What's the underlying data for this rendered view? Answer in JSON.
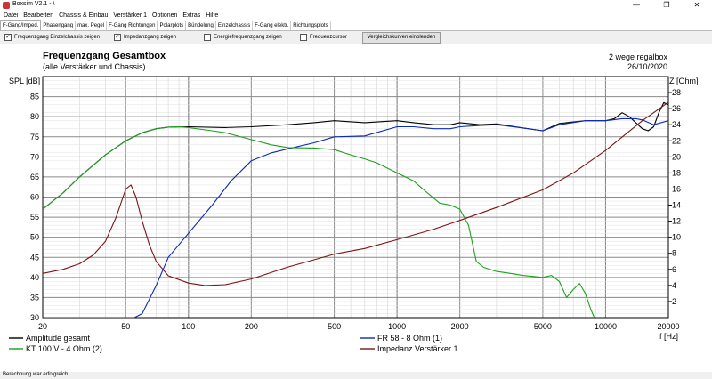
{
  "window": {
    "title": "Boxsim V2.1 - \\",
    "min": "—",
    "max": "❐",
    "close": "✕"
  },
  "menu": [
    "Datei",
    "Bearbeiten",
    "Chassis & Einbau",
    "Verstärker 1",
    "Optionen",
    "Extras",
    "Hilfe"
  ],
  "tabs": [
    "F-Gang/Imped.",
    "Phasengang",
    "max. Pegel",
    "F-Gang Richtungen",
    "Polarplots",
    "Bündelung",
    "Einzelchassis",
    "F-Gang elektr.",
    "Richtungsplots"
  ],
  "active_tab": 0,
  "toolbar": {
    "checkboxes": [
      {
        "label": "Frequenzgang Einzelchassis zeigen",
        "checked": true
      },
      {
        "label": "Impedanzgang zeigen",
        "checked": true
      },
      {
        "label": "Energiefrequenzgang zeigen",
        "checked": false
      },
      {
        "label": "Frequenzcursor",
        "checked": false
      }
    ],
    "compare_button": "Vergleichskurven einblenden"
  },
  "status": "Berechnung war erfolgreich",
  "chart_data": {
    "type": "line",
    "title": "Frequenzgang Gesamtbox",
    "subtitle": "(alle Verstärker und Chassis)",
    "info_right": [
      "2 wege regalbox",
      "26/10/2020"
    ],
    "ylabel": "SPL [dB]",
    "y2label": "Z [Ohm]",
    "xlabel": "f [Hz]",
    "xlim": [
      20,
      20000
    ],
    "ylim": [
      30,
      90
    ],
    "y2lim": [
      0,
      30
    ],
    "xscale": "log",
    "x_ticks": [
      20,
      50,
      100,
      200,
      500,
      1000,
      2000,
      5000,
      10000,
      20000
    ],
    "x_tick_labels": [
      "20",
      "50",
      "100",
      "200",
      "500",
      "1000",
      "2000",
      "5000",
      "10000",
      "20000"
    ],
    "y_ticks": [
      30,
      35,
      40,
      45,
      50,
      55,
      60,
      65,
      70,
      75,
      80,
      85
    ],
    "y_tick_labels": [
      "30",
      "35",
      "40",
      "45",
      "50",
      "55",
      "60",
      "65",
      "70",
      "75",
      "80",
      "85"
    ],
    "y2_ticks": [
      2,
      4,
      6,
      8,
      10,
      12,
      14,
      16,
      18,
      20,
      22,
      24,
      26,
      28
    ],
    "y2_tick_labels": [
      "2",
      "4",
      "6",
      "8",
      "10",
      "12",
      "14",
      "16",
      "18",
      "20",
      "22",
      "24",
      "26",
      "28"
    ],
    "grid": true,
    "series": [
      {
        "name": "Amplitude gesamt",
        "color": "#000000",
        "axis": "left",
        "points": [
          [
            20,
            57
          ],
          [
            25,
            61
          ],
          [
            30,
            65
          ],
          [
            40,
            70.5
          ],
          [
            50,
            74
          ],
          [
            60,
            76
          ],
          [
            70,
            77
          ],
          [
            80,
            77.4
          ],
          [
            100,
            77.5
          ],
          [
            150,
            77.3
          ],
          [
            200,
            77.5
          ],
          [
            300,
            78
          ],
          [
            400,
            78.5
          ],
          [
            500,
            79
          ],
          [
            700,
            78.5
          ],
          [
            1000,
            79
          ],
          [
            1200,
            78.5
          ],
          [
            1500,
            78
          ],
          [
            1800,
            78
          ],
          [
            2000,
            78.5
          ],
          [
            2500,
            78
          ],
          [
            3000,
            78.2
          ],
          [
            4000,
            77.2
          ],
          [
            5000,
            76.5
          ],
          [
            6000,
            78.3
          ],
          [
            8000,
            79
          ],
          [
            10000,
            79
          ],
          [
            11000,
            79.5
          ],
          [
            12000,
            81
          ],
          [
            13000,
            80
          ],
          [
            15000,
            77
          ],
          [
            16000,
            76.5
          ],
          [
            17000,
            77.5
          ],
          [
            18000,
            81
          ],
          [
            19000,
            83.5
          ],
          [
            20000,
            83
          ]
        ]
      },
      {
        "name": "FR 58 - 8 Ohm (1)",
        "color": "#0a2ab8",
        "axis": "left",
        "points": [
          [
            20,
            30
          ],
          [
            55,
            30
          ],
          [
            60,
            31
          ],
          [
            70,
            38
          ],
          [
            80,
            45
          ],
          [
            100,
            51
          ],
          [
            130,
            58
          ],
          [
            160,
            64
          ],
          [
            200,
            69
          ],
          [
            250,
            71
          ],
          [
            300,
            72
          ],
          [
            400,
            73.5
          ],
          [
            500,
            75
          ],
          [
            700,
            75.2
          ],
          [
            1000,
            77.5
          ],
          [
            1200,
            77.5
          ],
          [
            1500,
            77
          ],
          [
            1800,
            77
          ],
          [
            2000,
            77.5
          ],
          [
            2500,
            77.8
          ],
          [
            3000,
            78
          ],
          [
            4000,
            77.2
          ],
          [
            5000,
            76.5
          ],
          [
            6000,
            78
          ],
          [
            8000,
            79
          ],
          [
            10000,
            79
          ],
          [
            12000,
            79.5
          ],
          [
            14000,
            79.5
          ],
          [
            15000,
            79.2
          ],
          [
            17000,
            78
          ],
          [
            20000,
            79
          ]
        ]
      },
      {
        "name": "KT 100 V - 4 Ohm (2)",
        "color": "#1ca01c",
        "axis": "left",
        "points": [
          [
            20,
            57
          ],
          [
            25,
            61
          ],
          [
            30,
            65
          ],
          [
            40,
            70.5
          ],
          [
            50,
            74
          ],
          [
            60,
            76
          ],
          [
            70,
            77
          ],
          [
            80,
            77.4
          ],
          [
            90,
            77.5
          ],
          [
            100,
            77.3
          ],
          [
            130,
            76.5
          ],
          [
            150,
            76
          ],
          [
            200,
            74.3
          ],
          [
            250,
            73
          ],
          [
            300,
            72.3
          ],
          [
            400,
            72.2
          ],
          [
            500,
            71.8
          ],
          [
            600,
            70.5
          ],
          [
            700,
            69.5
          ],
          [
            800,
            68.5
          ],
          [
            1000,
            66
          ],
          [
            1200,
            64
          ],
          [
            1400,
            61
          ],
          [
            1600,
            58.5
          ],
          [
            1800,
            58
          ],
          [
            2000,
            57
          ],
          [
            2200,
            53
          ],
          [
            2400,
            44
          ],
          [
            2600,
            42.5
          ],
          [
            3000,
            41.5
          ],
          [
            3500,
            41
          ],
          [
            4000,
            40.5
          ],
          [
            5000,
            40
          ],
          [
            5500,
            40.5
          ],
          [
            6000,
            39
          ],
          [
            6500,
            35
          ],
          [
            7000,
            37
          ],
          [
            7500,
            38.5
          ],
          [
            8000,
            36
          ],
          [
            8500,
            32
          ],
          [
            9000,
            29
          ]
        ]
      },
      {
        "name": "Impedanz Verstärker 1",
        "color": "#7a1414",
        "axis": "right",
        "points": [
          [
            20,
            5.5
          ],
          [
            25,
            6
          ],
          [
            30,
            6.7
          ],
          [
            35,
            7.8
          ],
          [
            40,
            9.5
          ],
          [
            45,
            12.5
          ],
          [
            50,
            16
          ],
          [
            53,
            16.5
          ],
          [
            56,
            15
          ],
          [
            60,
            12
          ],
          [
            65,
            9
          ],
          [
            70,
            7
          ],
          [
            80,
            5.2
          ],
          [
            100,
            4.3
          ],
          [
            120,
            4
          ],
          [
            150,
            4.1
          ],
          [
            200,
            4.8
          ],
          [
            300,
            6.3
          ],
          [
            400,
            7.2
          ],
          [
            500,
            7.9
          ],
          [
            700,
            8.6
          ],
          [
            1000,
            9.7
          ],
          [
            1500,
            11
          ],
          [
            2000,
            12.1
          ],
          [
            3000,
            13.7
          ],
          [
            5000,
            15.9
          ],
          [
            7000,
            18
          ],
          [
            10000,
            20.8
          ],
          [
            15000,
            24.5
          ],
          [
            20000,
            26.8
          ]
        ]
      }
    ]
  }
}
